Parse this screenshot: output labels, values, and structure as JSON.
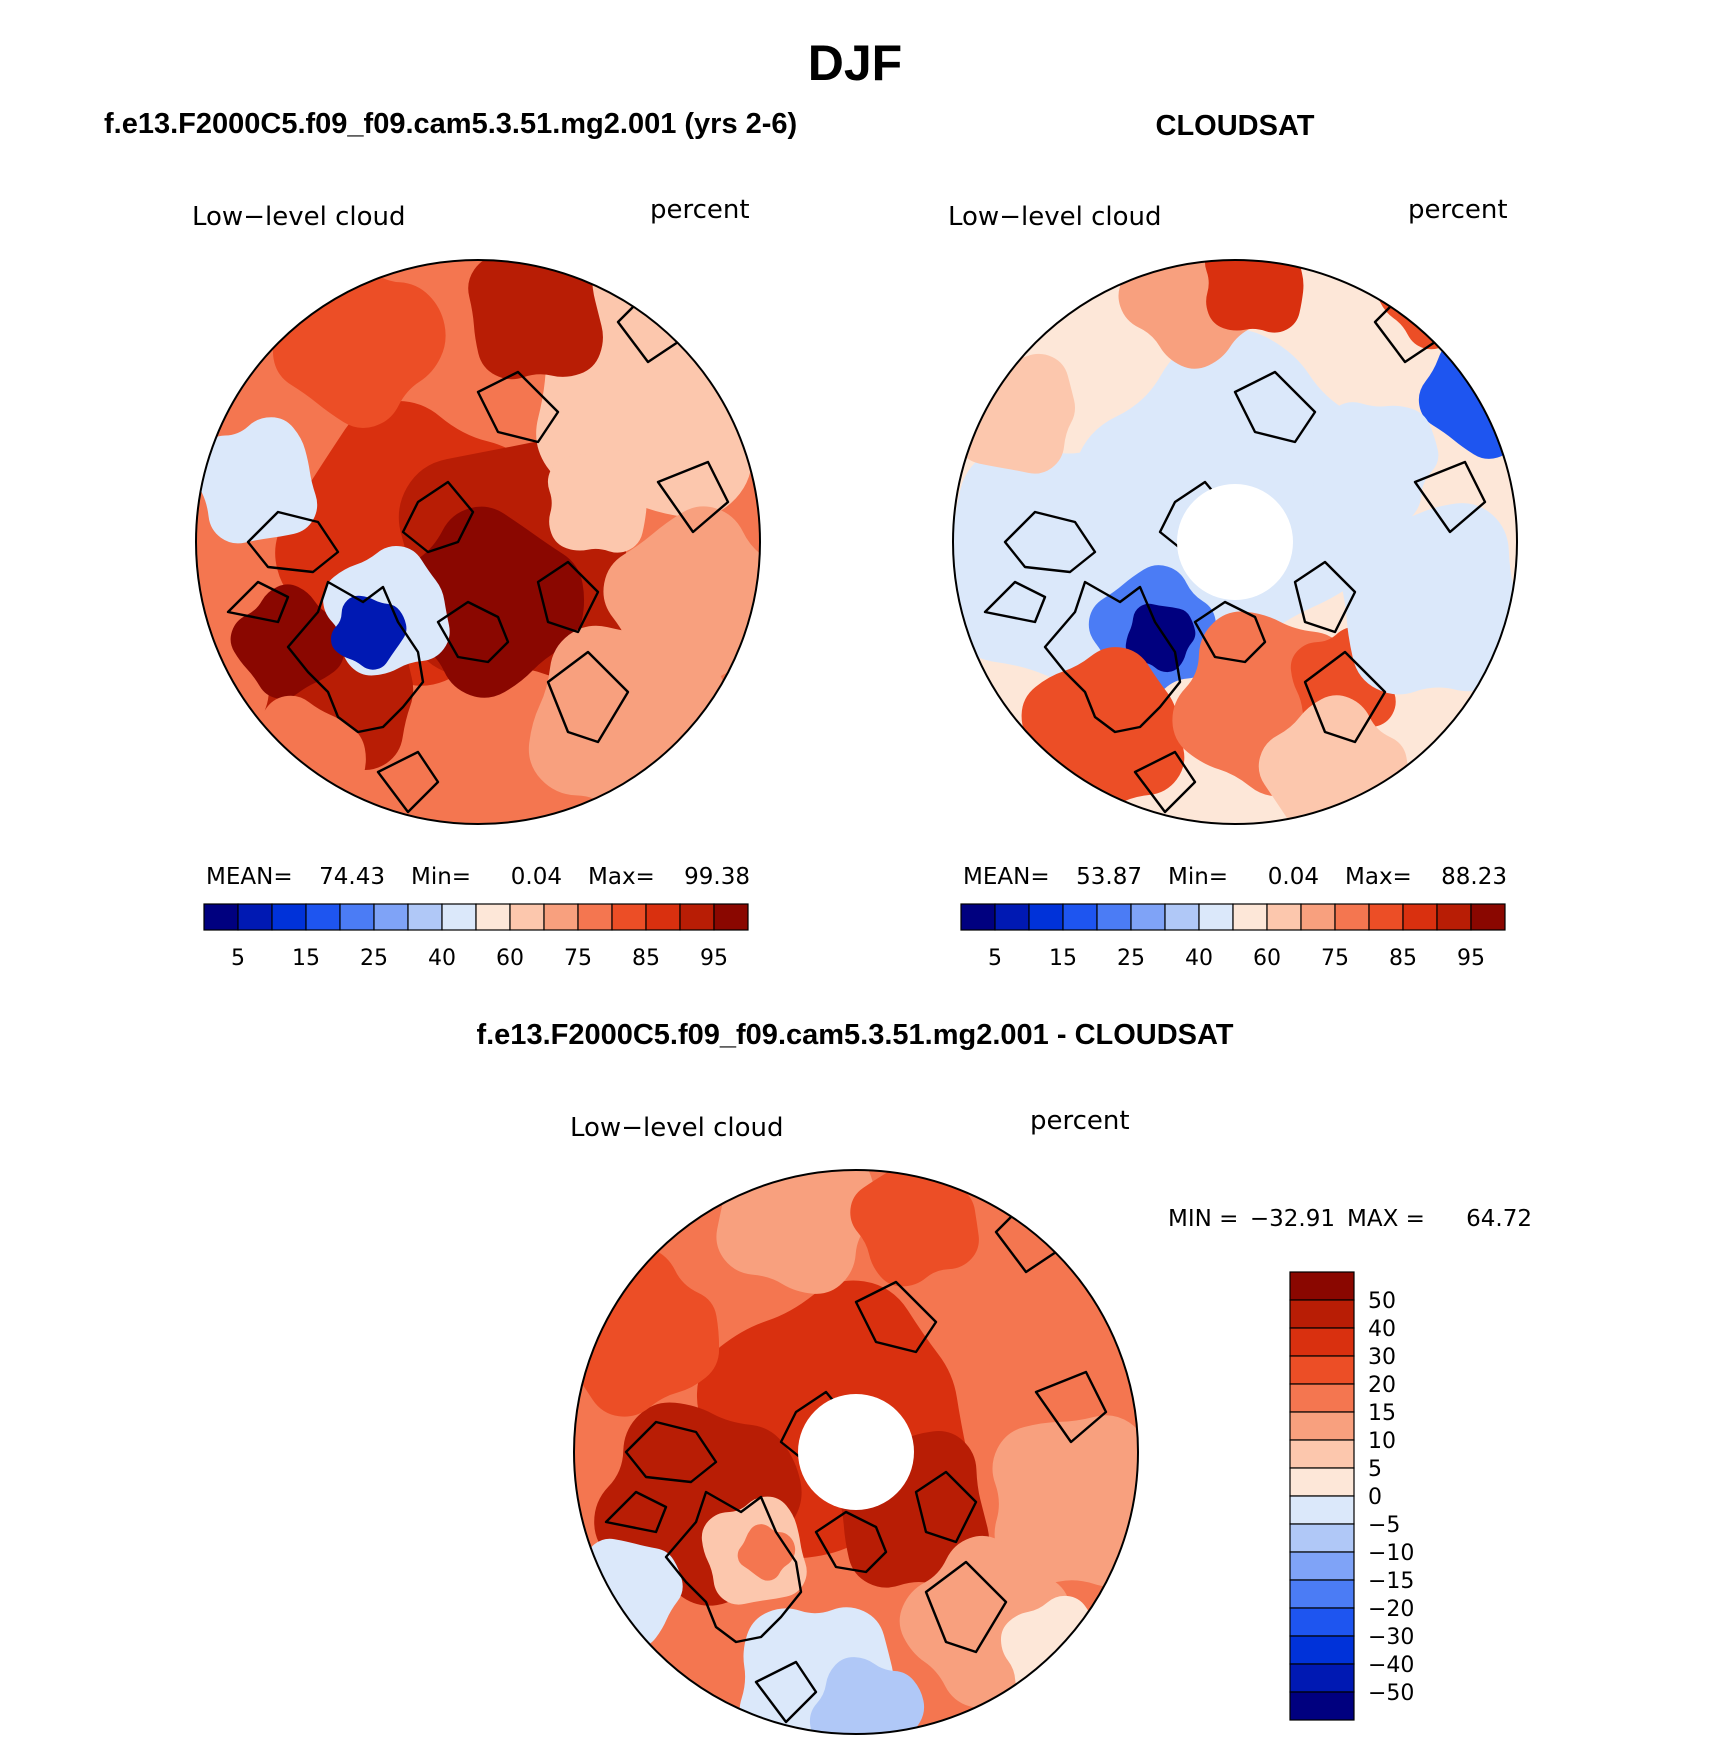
{
  "main_title": "DJF",
  "panel_left": {
    "title": "f.e13.F2000C5.f09_f09.cam5.3.51.mg2.001 (yrs 2-6)",
    "var_label": "Low−level cloud",
    "units": "percent",
    "stats": {
      "mean_label": "MEAN=",
      "mean": "74.43",
      "min_label": "Min=",
      "min": "0.04",
      "max_label": "Max=",
      "max": "99.38"
    }
  },
  "panel_right": {
    "title": "CLOUDSAT",
    "var_label": "Low−level cloud",
    "units": "percent",
    "stats": {
      "mean_label": "MEAN=",
      "mean": "53.87",
      "min_label": "Min=",
      "min": "0.04",
      "max_label": "Max=",
      "max": "88.23"
    }
  },
  "panel_diff": {
    "title": "f.e13.F2000C5.f09_f09.cam5.3.51.mg2.001 - CLOUDSAT",
    "var_label": "Low−level cloud",
    "units": "percent",
    "stats": {
      "min_label": "MIN =",
      "min": "−32.91",
      "max_label": "MAX =",
      "max": "64.72"
    }
  },
  "colors": {
    "seq_palette": [
      "#00007f",
      "#0019b3",
      "#0032d9",
      "#1e55f0",
      "#4b7cf5",
      "#7fa3f7",
      "#b0c8f7",
      "#dbe8fa",
      "#fde7d8",
      "#fcc7ad",
      "#f8a07e",
      "#f47650",
      "#ec4e26",
      "#d9300f",
      "#b81d05",
      "#8a0700"
    ],
    "diff_palette": [
      "#8a0700",
      "#b81d05",
      "#d9300f",
      "#ec4e26",
      "#f47650",
      "#f8a07e",
      "#fcc7ad",
      "#fde7d8",
      "#dbe8fa",
      "#b0c8f7",
      "#7fa3f7",
      "#4b7cf5",
      "#1e55f0",
      "#0032d9",
      "#0019b3",
      "#00007f"
    ]
  },
  "chart_data": [
    {
      "type": "heatmap",
      "projection": "north-polar-stereographic",
      "title": "f.e13.F2000C5.f09_f09.cam5.3.51.mg2.001 (yrs 2-6)",
      "variable": "Low−level cloud",
      "units": "percent",
      "mean": 74.43,
      "min": 0.04,
      "max": 99.38,
      "colorbar_levels": [
        5,
        10,
        15,
        20,
        25,
        30,
        40,
        50,
        60,
        70,
        75,
        80,
        85,
        90,
        95
      ],
      "colorbar_tick_labels": [
        "5",
        "15",
        "25",
        "40",
        "60",
        "75",
        "85",
        "95"
      ],
      "colorbar_orientation": "horizontal"
    },
    {
      "type": "heatmap",
      "projection": "north-polar-stereographic",
      "title": "CLOUDSAT",
      "variable": "Low−level cloud",
      "units": "percent",
      "mean": 53.87,
      "min": 0.04,
      "max": 88.23,
      "colorbar_levels": [
        5,
        10,
        15,
        20,
        25,
        30,
        40,
        50,
        60,
        70,
        75,
        80,
        85,
        90,
        95
      ],
      "colorbar_tick_labels": [
        "5",
        "15",
        "25",
        "40",
        "60",
        "75",
        "85",
        "95"
      ],
      "colorbar_orientation": "horizontal"
    },
    {
      "type": "heatmap",
      "projection": "north-polar-stereographic",
      "title": "f.e13.F2000C5.f09_f09.cam5.3.51.mg2.001 - CLOUDSAT",
      "variable": "Low−level cloud",
      "units": "percent",
      "min": -32.91,
      "max": 64.72,
      "colorbar_levels": [
        50,
        40,
        30,
        20,
        15,
        10,
        5,
        0,
        -5,
        -10,
        -15,
        -20,
        -30,
        -40,
        -50
      ],
      "colorbar_tick_labels": [
        "50",
        "40",
        "30",
        "20",
        "15",
        "10",
        "5",
        "0",
        "−5",
        "−10",
        "−15",
        "−20",
        "−30",
        "−40",
        "−50"
      ],
      "colorbar_orientation": "vertical"
    }
  ]
}
